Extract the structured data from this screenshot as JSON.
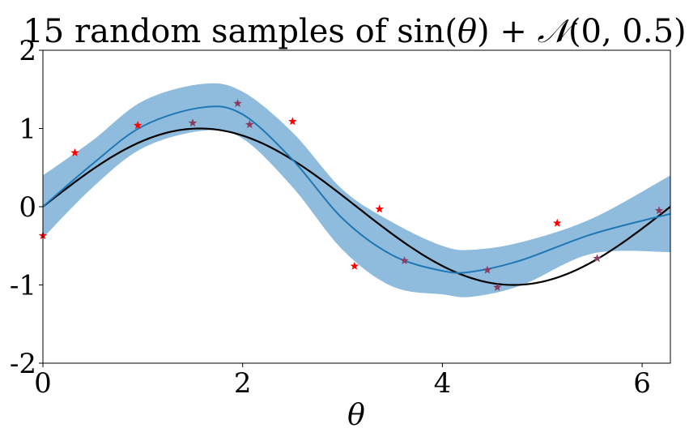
{
  "chart_data": {
    "type": "line",
    "title": {
      "prefix": "15 random samples of sin(",
      "theta": "θ",
      "middle": ") + ",
      "normal": "𝒩",
      "args": "(0, 0.5)"
    },
    "xlabel": "θ",
    "ylabel": "",
    "xlim": [
      0,
      6.283
    ],
    "ylim": [
      -2,
      2
    ],
    "x_ticks": [
      {
        "value": 0,
        "label": "0"
      },
      {
        "value": 2,
        "label": "2"
      },
      {
        "value": 4,
        "label": "4"
      },
      {
        "value": 6,
        "label": "6"
      }
    ],
    "y_ticks": [
      {
        "value": 2,
        "label": "2"
      },
      {
        "value": 1,
        "label": "1"
      },
      {
        "value": 0,
        "label": "0"
      },
      {
        "value": -1,
        "label": "-1"
      },
      {
        "value": -2,
        "label": "-2"
      }
    ],
    "colors": {
      "band": "#8fbcdc",
      "mean": "#1f77b4",
      "truth": "#000000",
      "sample_outside": "#ff0000",
      "sample_inside": "#8b3a62"
    },
    "series": [
      {
        "name": "true sin(θ)",
        "kind": "function",
        "function": "sin"
      },
      {
        "name": "predicted mean",
        "kind": "line",
        "x": [
          0,
          0.5,
          1.0,
          1.6,
          2.0,
          2.5,
          3.0,
          3.5,
          4.0,
          4.3,
          4.8,
          5.5,
          6.283
        ],
        "y": [
          0.0,
          0.55,
          1.03,
          1.27,
          1.18,
          0.6,
          -0.15,
          -0.62,
          -0.82,
          -0.83,
          -0.68,
          -0.35,
          -0.09
        ]
      },
      {
        "name": "uncertainty band",
        "kind": "band",
        "x": [
          0,
          0.5,
          1.0,
          1.6,
          2.0,
          2.5,
          3.0,
          3.5,
          4.0,
          4.3,
          4.8,
          5.5,
          6.283
        ],
        "upper": [
          0.4,
          0.85,
          1.35,
          1.57,
          1.47,
          0.95,
          0.22,
          -0.2,
          -0.5,
          -0.55,
          -0.45,
          -0.15,
          0.4
        ],
        "lower": [
          -0.4,
          0.25,
          0.75,
          0.97,
          0.87,
          0.25,
          -0.55,
          -1.02,
          -1.12,
          -1.15,
          -1.0,
          -0.6,
          -0.58
        ]
      },
      {
        "name": "samples",
        "kind": "scatter",
        "points": [
          {
            "x": 0.0,
            "y": -0.37,
            "inside": false
          },
          {
            "x": 0.32,
            "y": 0.69,
            "inside": false
          },
          {
            "x": 0.95,
            "y": 1.04,
            "inside": false
          },
          {
            "x": 1.5,
            "y": 1.07,
            "inside": true
          },
          {
            "x": 1.95,
            "y": 1.32,
            "inside": true
          },
          {
            "x": 2.07,
            "y": 1.05,
            "inside": true
          },
          {
            "x": 2.5,
            "y": 1.09,
            "inside": false
          },
          {
            "x": 3.12,
            "y": -0.76,
            "inside": false
          },
          {
            "x": 3.37,
            "y": -0.03,
            "inside": false
          },
          {
            "x": 3.62,
            "y": -0.69,
            "inside": true
          },
          {
            "x": 4.45,
            "y": -0.81,
            "inside": true
          },
          {
            "x": 4.55,
            "y": -1.03,
            "inside": true
          },
          {
            "x": 5.15,
            "y": -0.21,
            "inside": false
          },
          {
            "x": 5.55,
            "y": -0.66,
            "inside": true
          },
          {
            "x": 6.17,
            "y": -0.05,
            "inside": true
          }
        ]
      }
    ]
  }
}
